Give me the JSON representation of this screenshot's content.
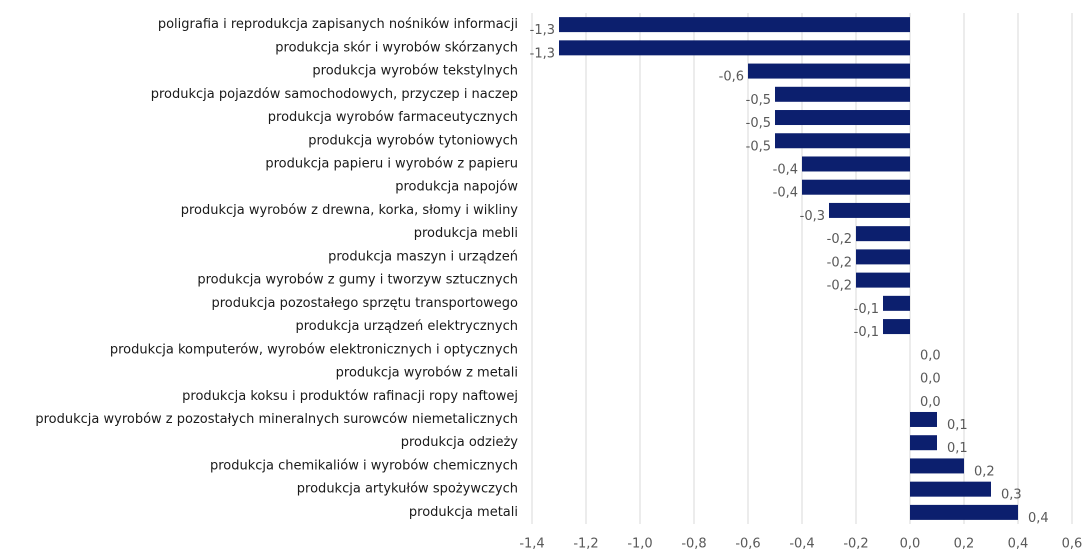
{
  "chart_data": {
    "type": "hbar",
    "categories": [
      "poligrafia i reprodukcja zapisanych nośników informacji",
      "produkcja skór i wyrobów skórzanych",
      "produkcja wyrobów tekstylnych",
      "produkcja pojazdów samochodowych, przyczep i naczep",
      "produkcja wyrobów farmaceutycznych",
      "produkcja wyrobów tytoniowych",
      "produkcja papieru i wyrobów z papieru",
      "produkcja napojów",
      "produkcja wyrobów z drewna, korka, słomy i wikliny",
      "produkcja mebli",
      "produkcja maszyn i urządzeń",
      "produkcja wyrobów z gumy i tworzyw sztucznych",
      "produkcja pozostałego sprzętu transportowego",
      "produkcja urządzeń elektrycznych",
      "produkcja komputerów, wyrobów elektronicznych i optycznych",
      "produkcja wyrobów z metali",
      "produkcja koksu i produktów rafinacji ropy naftowej",
      "produkcja wyrobów z pozostałych mineralnych surowców niemetalicznych",
      "produkcja odzieży",
      "produkcja chemikaliów i wyrobów chemicznych",
      "produkcja artykułów spożywczych",
      "produkcja metali"
    ],
    "values": [
      -1.3,
      -1.3,
      -0.6,
      -0.5,
      -0.5,
      -0.5,
      -0.4,
      -0.4,
      -0.3,
      -0.2,
      -0.2,
      -0.2,
      -0.1,
      -0.1,
      0,
      0,
      0,
      0.1,
      0.1,
      0.2,
      0.3,
      0.4
    ],
    "value_labels": [
      "-1,3",
      "-1,3",
      "-0,6",
      "-0,5",
      "-0,5",
      "-0,5",
      "-0,4",
      "-0,4",
      "-0,3",
      "-0,2",
      "-0,2",
      "-0,2",
      "-0,1",
      "-0,1",
      "0,0",
      "0,0",
      "0,0",
      "0,1",
      "0,1",
      "0,2",
      "0,3",
      "0,4"
    ],
    "color": "#0c1f6e",
    "xlim": [
      -1.4,
      0.6
    ],
    "xticks": [
      {
        "value": -1.4,
        "label": "-1,4"
      },
      {
        "value": -1.2,
        "label": "-1,2"
      },
      {
        "value": -1.0,
        "label": "-1,0"
      },
      {
        "value": -0.8,
        "label": "-0,8"
      },
      {
        "value": -0.6,
        "label": "-0,6"
      },
      {
        "value": -0.4,
        "label": "-0,4"
      },
      {
        "value": -0.2,
        "label": "-0,2"
      },
      {
        "value": 0,
        "label": "0,0"
      },
      {
        "value": 0.2,
        "label": "0,2"
      },
      {
        "value": 0.4,
        "label": "0,4"
      },
      {
        "value": 0.6,
        "label": "0,6"
      }
    ],
    "grid": true
  }
}
